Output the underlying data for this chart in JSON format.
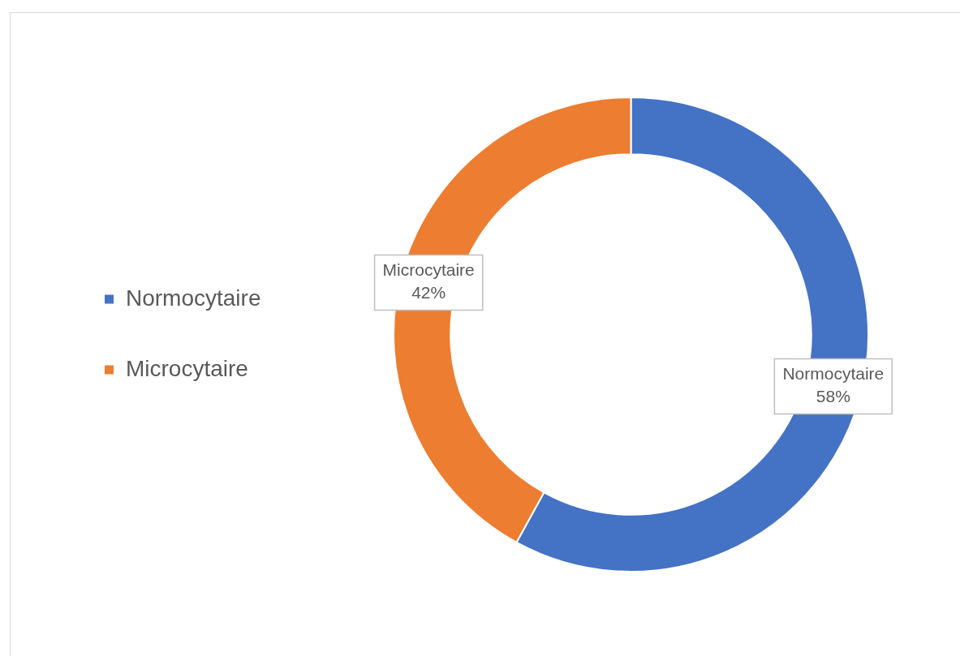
{
  "chart_data": {
    "type": "donut",
    "categories": [
      "Normocytaire",
      "Microcytaire"
    ],
    "values": [
      58,
      42
    ],
    "colors": [
      "#4472c4",
      "#ed7d31"
    ],
    "value_labels": [
      "58%",
      "42%"
    ],
    "legend": "left"
  }
}
